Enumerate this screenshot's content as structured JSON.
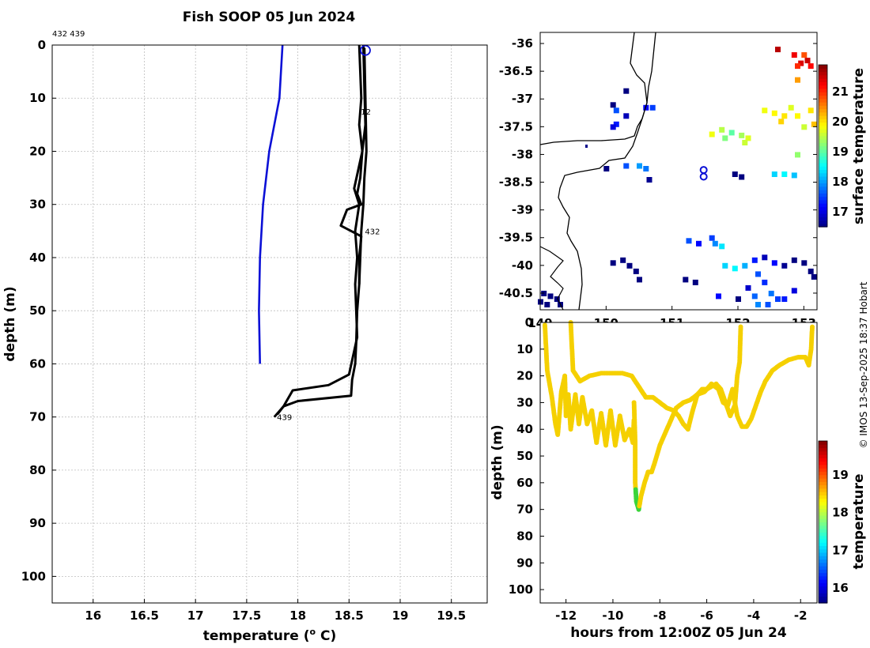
{
  "title": "Fish SOOP 05 Jun 2024",
  "credit": "© IMOS 13-Sep-2025 18:37 Hobart",
  "profile_ids_label": "432 439",
  "colors": {
    "blue_profile": "#0b10d6",
    "black_profile": "#000000",
    "dot_warm": "#f5d000",
    "dot_cool": "#3ad43a"
  },
  "chart_data": [
    {
      "id": "profile",
      "type": "line",
      "title": "Fish SOOP 05 Jun 2024",
      "xlabel": "temperature (o C)",
      "xlabel_main": "temperature (",
      "xlabel_sup": "o",
      "xlabel_tail": " C)",
      "ylabel": "depth (m)",
      "xlim": [
        15.6,
        19.85
      ],
      "ylim": [
        0,
        105
      ],
      "y_inverted": true,
      "x_ticks": [
        "16",
        "16.5",
        "17",
        "17.5",
        "18",
        "18.5",
        "19",
        "19.5"
      ],
      "y_ticks": [
        "0",
        "10",
        "20",
        "30",
        "40",
        "50",
        "60",
        "70",
        "80",
        "90",
        "100"
      ],
      "series": [
        {
          "name": "reference",
          "color": "blue",
          "points": [
            [
              17.85,
              0
            ],
            [
              17.82,
              10
            ],
            [
              17.72,
              20
            ],
            [
              17.66,
              30
            ],
            [
              17.63,
              40
            ],
            [
              17.62,
              50
            ],
            [
              17.63,
              60
            ]
          ]
        },
        {
          "name": "432 down",
          "color": "black",
          "points": [
            [
              18.6,
              0
            ],
            [
              18.61,
              5
            ],
            [
              18.62,
              10
            ],
            [
              18.6,
              15
            ],
            [
              18.63,
              20
            ],
            [
              18.55,
              27
            ],
            [
              18.6,
              30
            ],
            [
              18.56,
              35
            ],
            [
              18.58,
              40
            ],
            [
              18.56,
              45
            ],
            [
              18.57,
              50
            ],
            [
              18.58,
              55
            ],
            [
              18.5,
              62
            ],
            [
              18.3,
              64
            ],
            [
              17.95,
              65
            ],
            [
              17.86,
              68
            ],
            [
              17.77,
              70
            ]
          ]
        },
        {
          "name": "432 up",
          "color": "black",
          "points": [
            [
              18.64,
              0
            ],
            [
              18.65,
              8
            ],
            [
              18.66,
              15
            ],
            [
              18.63,
              20
            ],
            [
              18.61,
              25
            ],
            [
              18.58,
              28
            ],
            [
              18.62,
              30
            ],
            [
              18.48,
              31
            ],
            [
              18.42,
              34
            ],
            [
              18.62,
              36
            ],
            [
              18.6,
              40
            ],
            [
              18.6,
              45
            ],
            [
              18.58,
              50
            ],
            [
              18.57,
              56
            ],
            [
              18.56,
              60
            ],
            [
              18.53,
              63
            ],
            [
              18.52,
              66
            ],
            [
              18.0,
              67
            ],
            [
              17.86,
              68
            ],
            [
              17.8,
              69.5
            ]
          ]
        },
        {
          "name": "439 down",
          "color": "black",
          "points": [
            [
              18.65,
              0.5
            ],
            [
              18.66,
              10
            ],
            [
              18.67,
              20
            ],
            [
              18.65,
              25
            ],
            [
              18.64,
              30
            ],
            [
              18.62,
              35
            ],
            [
              18.61,
              40
            ],
            [
              18.6,
              45
            ]
          ]
        }
      ],
      "marker": {
        "x": 18.66,
        "y": 1.0,
        "shape": "circle"
      },
      "annotations": [
        {
          "text": "439",
          "x": 17.78,
          "y": 70
        },
        {
          "text": "432",
          "x": 18.64,
          "y": 35
        },
        {
          "text": "12",
          "x": 18.6,
          "y": 12.5
        }
      ]
    },
    {
      "id": "map",
      "type": "heatmap",
      "xlabel": "",
      "ylabel": "",
      "xlim": [
        149.0,
        153.2
      ],
      "ylim": [
        -40.8,
        -35.8
      ],
      "x_ticks": [
        "149",
        "150",
        "151",
        "152",
        "153"
      ],
      "y_ticks": [
        "-36",
        "-36.5",
        "-37",
        "-37.5",
        "-38",
        "-38.5",
        "-39",
        "-39.5",
        "-40",
        "-40.5"
      ],
      "colorbar": {
        "label": "surface temperature",
        "ticks": [
          "17",
          "18",
          "19",
          "20",
          "21"
        ],
        "range": [
          16.5,
          21.9
        ]
      },
      "track": [
        [
          151.48,
          -38.28
        ],
        [
          151.48,
          -38.4
        ]
      ],
      "sst_cells": [
        [
          153.0,
          -36.2,
          20.8
        ],
        [
          152.95,
          -36.35,
          21.4
        ],
        [
          153.05,
          -36.3,
          21.5
        ],
        [
          153.1,
          -36.4,
          21.2
        ],
        [
          152.9,
          -36.4,
          21.0
        ],
        [
          152.6,
          -36.1,
          21.6
        ],
        [
          152.85,
          -36.2,
          21.3
        ],
        [
          152.9,
          -36.65,
          20.4
        ],
        [
          152.4,
          -37.2,
          19.8
        ],
        [
          152.55,
          -37.25,
          19.9
        ],
        [
          152.7,
          -37.3,
          20.0
        ],
        [
          152.8,
          -37.15,
          19.7
        ],
        [
          152.65,
          -37.4,
          20.1
        ],
        [
          152.9,
          -37.3,
          19.9
        ],
        [
          153.1,
          -37.2,
          20.0
        ],
        [
          153.15,
          -37.45,
          20.2
        ],
        [
          153.0,
          -37.5,
          19.6
        ],
        [
          151.75,
          -37.55,
          19.5
        ],
        [
          151.9,
          -37.6,
          19.0
        ],
        [
          152.05,
          -37.65,
          19.4
        ],
        [
          152.15,
          -37.7,
          19.7
        ],
        [
          151.8,
          -37.7,
          19.2
        ],
        [
          151.6,
          -37.63,
          19.8
        ],
        [
          152.1,
          -37.78,
          19.6
        ],
        [
          150.1,
          -37.1,
          16.2
        ],
        [
          150.15,
          -37.2,
          17.6
        ],
        [
          150.3,
          -37.3,
          16.8
        ],
        [
          150.6,
          -37.15,
          17.2
        ],
        [
          150.7,
          -37.15,
          17.5
        ],
        [
          150.15,
          -37.45,
          17.3
        ],
        [
          150.1,
          -37.5,
          17.0
        ],
        [
          150.3,
          -36.85,
          16.3
        ],
        [
          150.3,
          -38.2,
          17.6
        ],
        [
          150.5,
          -38.2,
          18.0
        ],
        [
          150.6,
          -38.25,
          17.8
        ],
        [
          150.65,
          -38.45,
          16.6
        ],
        [
          150.0,
          -38.25,
          16.5
        ],
        [
          152.55,
          -38.35,
          18.3
        ],
        [
          152.7,
          -38.35,
          18.5
        ],
        [
          152.85,
          -38.37,
          18.2
        ],
        [
          151.95,
          -38.35,
          16.4
        ],
        [
          152.05,
          -38.4,
          16.3
        ],
        [
          152.9,
          -38.0,
          19.3
        ],
        [
          150.1,
          -39.95,
          16.1
        ],
        [
          150.25,
          -39.9,
          16.0
        ],
        [
          150.35,
          -40.0,
          16.2
        ],
        [
          150.45,
          -40.1,
          16.1
        ],
        [
          150.5,
          -40.25,
          16.0
        ],
        [
          151.2,
          -40.25,
          16.0
        ],
        [
          151.35,
          -40.3,
          16.1
        ],
        [
          151.25,
          -39.55,
          17.6
        ],
        [
          151.4,
          -39.6,
          17.2
        ],
        [
          151.65,
          -39.6,
          17.9
        ],
        [
          151.75,
          -39.65,
          18.4
        ],
        [
          151.6,
          -39.5,
          17.5
        ],
        [
          151.8,
          -40.0,
          18.3
        ],
        [
          151.95,
          -40.05,
          18.5
        ],
        [
          152.1,
          -40.0,
          18.1
        ],
        [
          152.25,
          -39.9,
          17.3
        ],
        [
          152.4,
          -39.85,
          16.8
        ],
        [
          152.55,
          -39.95,
          17.2
        ],
        [
          152.7,
          -40.0,
          16.6
        ],
        [
          152.85,
          -39.9,
          16.2
        ],
        [
          153.0,
          -39.95,
          16.0
        ],
        [
          153.1,
          -40.1,
          16.3
        ],
        [
          153.15,
          -40.2,
          16.1
        ],
        [
          152.3,
          -40.15,
          17.6
        ],
        [
          152.4,
          -40.3,
          17.4
        ],
        [
          152.5,
          -40.5,
          17.8
        ],
        [
          152.6,
          -40.6,
          17.5
        ],
        [
          152.3,
          -40.7,
          17.9
        ],
        [
          152.45,
          -40.7,
          17.6
        ],
        [
          152.7,
          -40.6,
          17.3
        ],
        [
          152.85,
          -40.45,
          17.0
        ],
        [
          152.15,
          -40.4,
          16.9
        ],
        [
          151.7,
          -40.55,
          17.2
        ],
        [
          152.0,
          -40.6,
          16.5
        ],
        [
          152.25,
          -40.55,
          17.7
        ],
        [
          149.05,
          -40.5,
          16.0
        ],
        [
          149.15,
          -40.55,
          16.1
        ],
        [
          149.25,
          -40.6,
          15.9
        ],
        [
          149.1,
          -40.7,
          16.0
        ],
        [
          149.3,
          -40.7,
          16.2
        ],
        [
          149.0,
          -40.65,
          16.3
        ]
      ]
    },
    {
      "id": "depth_time",
      "type": "scatter",
      "xlabel": "hours from 12:00Z 05 Jun 24",
      "ylabel": "depth (m)",
      "xlim": [
        -13.1,
        -1.3
      ],
      "ylim": [
        0,
        105
      ],
      "y_inverted": true,
      "x_ticks": [
        "-12",
        "-10",
        "-8",
        "-6",
        "-4",
        "-2"
      ],
      "y_ticks": [
        "0",
        "10",
        "20",
        "30",
        "40",
        "50",
        "60",
        "70",
        "80",
        "90",
        "100"
      ],
      "colorbar": {
        "label": "temperature",
        "ticks": [
          "16",
          "17",
          "18",
          "19"
        ],
        "range": [
          15.6,
          19.9
        ]
      },
      "segments": [
        [
          [
            -12.9,
            1
          ],
          [
            -12.8,
            18
          ],
          [
            -12.6,
            28
          ],
          [
            -12.45,
            38
          ],
          [
            -12.35,
            42
          ],
          [
            -12.2,
            26
          ],
          [
            -12.05,
            20
          ],
          [
            -12.0,
            35
          ],
          [
            -11.9,
            27
          ],
          [
            -11.8,
            40
          ],
          [
            -11.6,
            27
          ],
          [
            -11.45,
            38
          ],
          [
            -11.3,
            28
          ],
          [
            -11.1,
            38
          ],
          [
            -10.9,
            33
          ],
          [
            -10.7,
            45
          ],
          [
            -10.5,
            34
          ],
          [
            -10.3,
            46
          ],
          [
            -10.1,
            33
          ],
          [
            -9.9,
            46
          ],
          [
            -9.7,
            35
          ],
          [
            -9.5,
            44
          ],
          [
            -9.3,
            40
          ],
          [
            -9.15,
            45
          ],
          [
            -9.1,
            36
          ]
        ],
        [
          [
            -11.8,
            0
          ],
          [
            -11.7,
            18
          ],
          [
            -11.4,
            22
          ],
          [
            -11.0,
            20
          ],
          [
            -10.5,
            19
          ],
          [
            -10.0,
            19
          ],
          [
            -9.6,
            19
          ],
          [
            -9.2,
            20
          ],
          [
            -8.9,
            24
          ],
          [
            -8.6,
            28
          ],
          [
            -8.3,
            28
          ],
          [
            -8.0,
            30
          ],
          [
            -7.7,
            32
          ],
          [
            -7.4,
            33
          ],
          [
            -7.2,
            35
          ],
          [
            -7.0,
            38
          ],
          [
            -6.8,
            40
          ],
          [
            -6.6,
            33
          ],
          [
            -6.4,
            27
          ],
          [
            -6.2,
            25
          ],
          [
            -6.0,
            25
          ],
          [
            -5.8,
            24
          ],
          [
            -5.6,
            23
          ],
          [
            -5.4,
            25
          ],
          [
            -5.2,
            30
          ],
          [
            -5.0,
            35
          ],
          [
            -4.8,
            31
          ],
          [
            -4.7,
            20
          ],
          [
            -4.6,
            15
          ],
          [
            -4.55,
            1
          ]
        ],
        [
          [
            -9.1,
            30
          ],
          [
            -9.05,
            45
          ],
          [
            -9.05,
            60
          ],
          [
            -9.0,
            67
          ],
          [
            -8.9,
            70
          ],
          [
            -8.8,
            65
          ],
          [
            -8.65,
            60
          ],
          [
            -8.5,
            56
          ],
          [
            -8.35,
            56
          ],
          [
            -8.2,
            52
          ],
          [
            -8.0,
            46
          ],
          [
            -7.8,
            42
          ],
          [
            -7.5,
            36
          ],
          [
            -7.3,
            32
          ],
          [
            -7.0,
            30
          ],
          [
            -6.7,
            29
          ],
          [
            -6.4,
            27
          ],
          [
            -6.1,
            26
          ],
          [
            -5.8,
            23
          ],
          [
            -5.5,
            25
          ],
          [
            -5.3,
            30
          ],
          [
            -5.1,
            31
          ],
          [
            -4.9,
            25
          ],
          [
            -4.7,
            35
          ],
          [
            -4.5,
            39
          ],
          [
            -4.3,
            39
          ],
          [
            -4.1,
            36
          ],
          [
            -3.9,
            31
          ],
          [
            -3.7,
            26
          ],
          [
            -3.5,
            22
          ],
          [
            -3.2,
            18
          ],
          [
            -2.9,
            16
          ],
          [
            -2.5,
            14
          ],
          [
            -2.1,
            13
          ],
          [
            -1.8,
            13
          ],
          [
            -1.65,
            16
          ],
          [
            -1.55,
            10
          ],
          [
            -1.5,
            1
          ]
        ]
      ],
      "green_section": [
        -9.08,
        62,
        -8.88,
        70
      ]
    }
  ]
}
